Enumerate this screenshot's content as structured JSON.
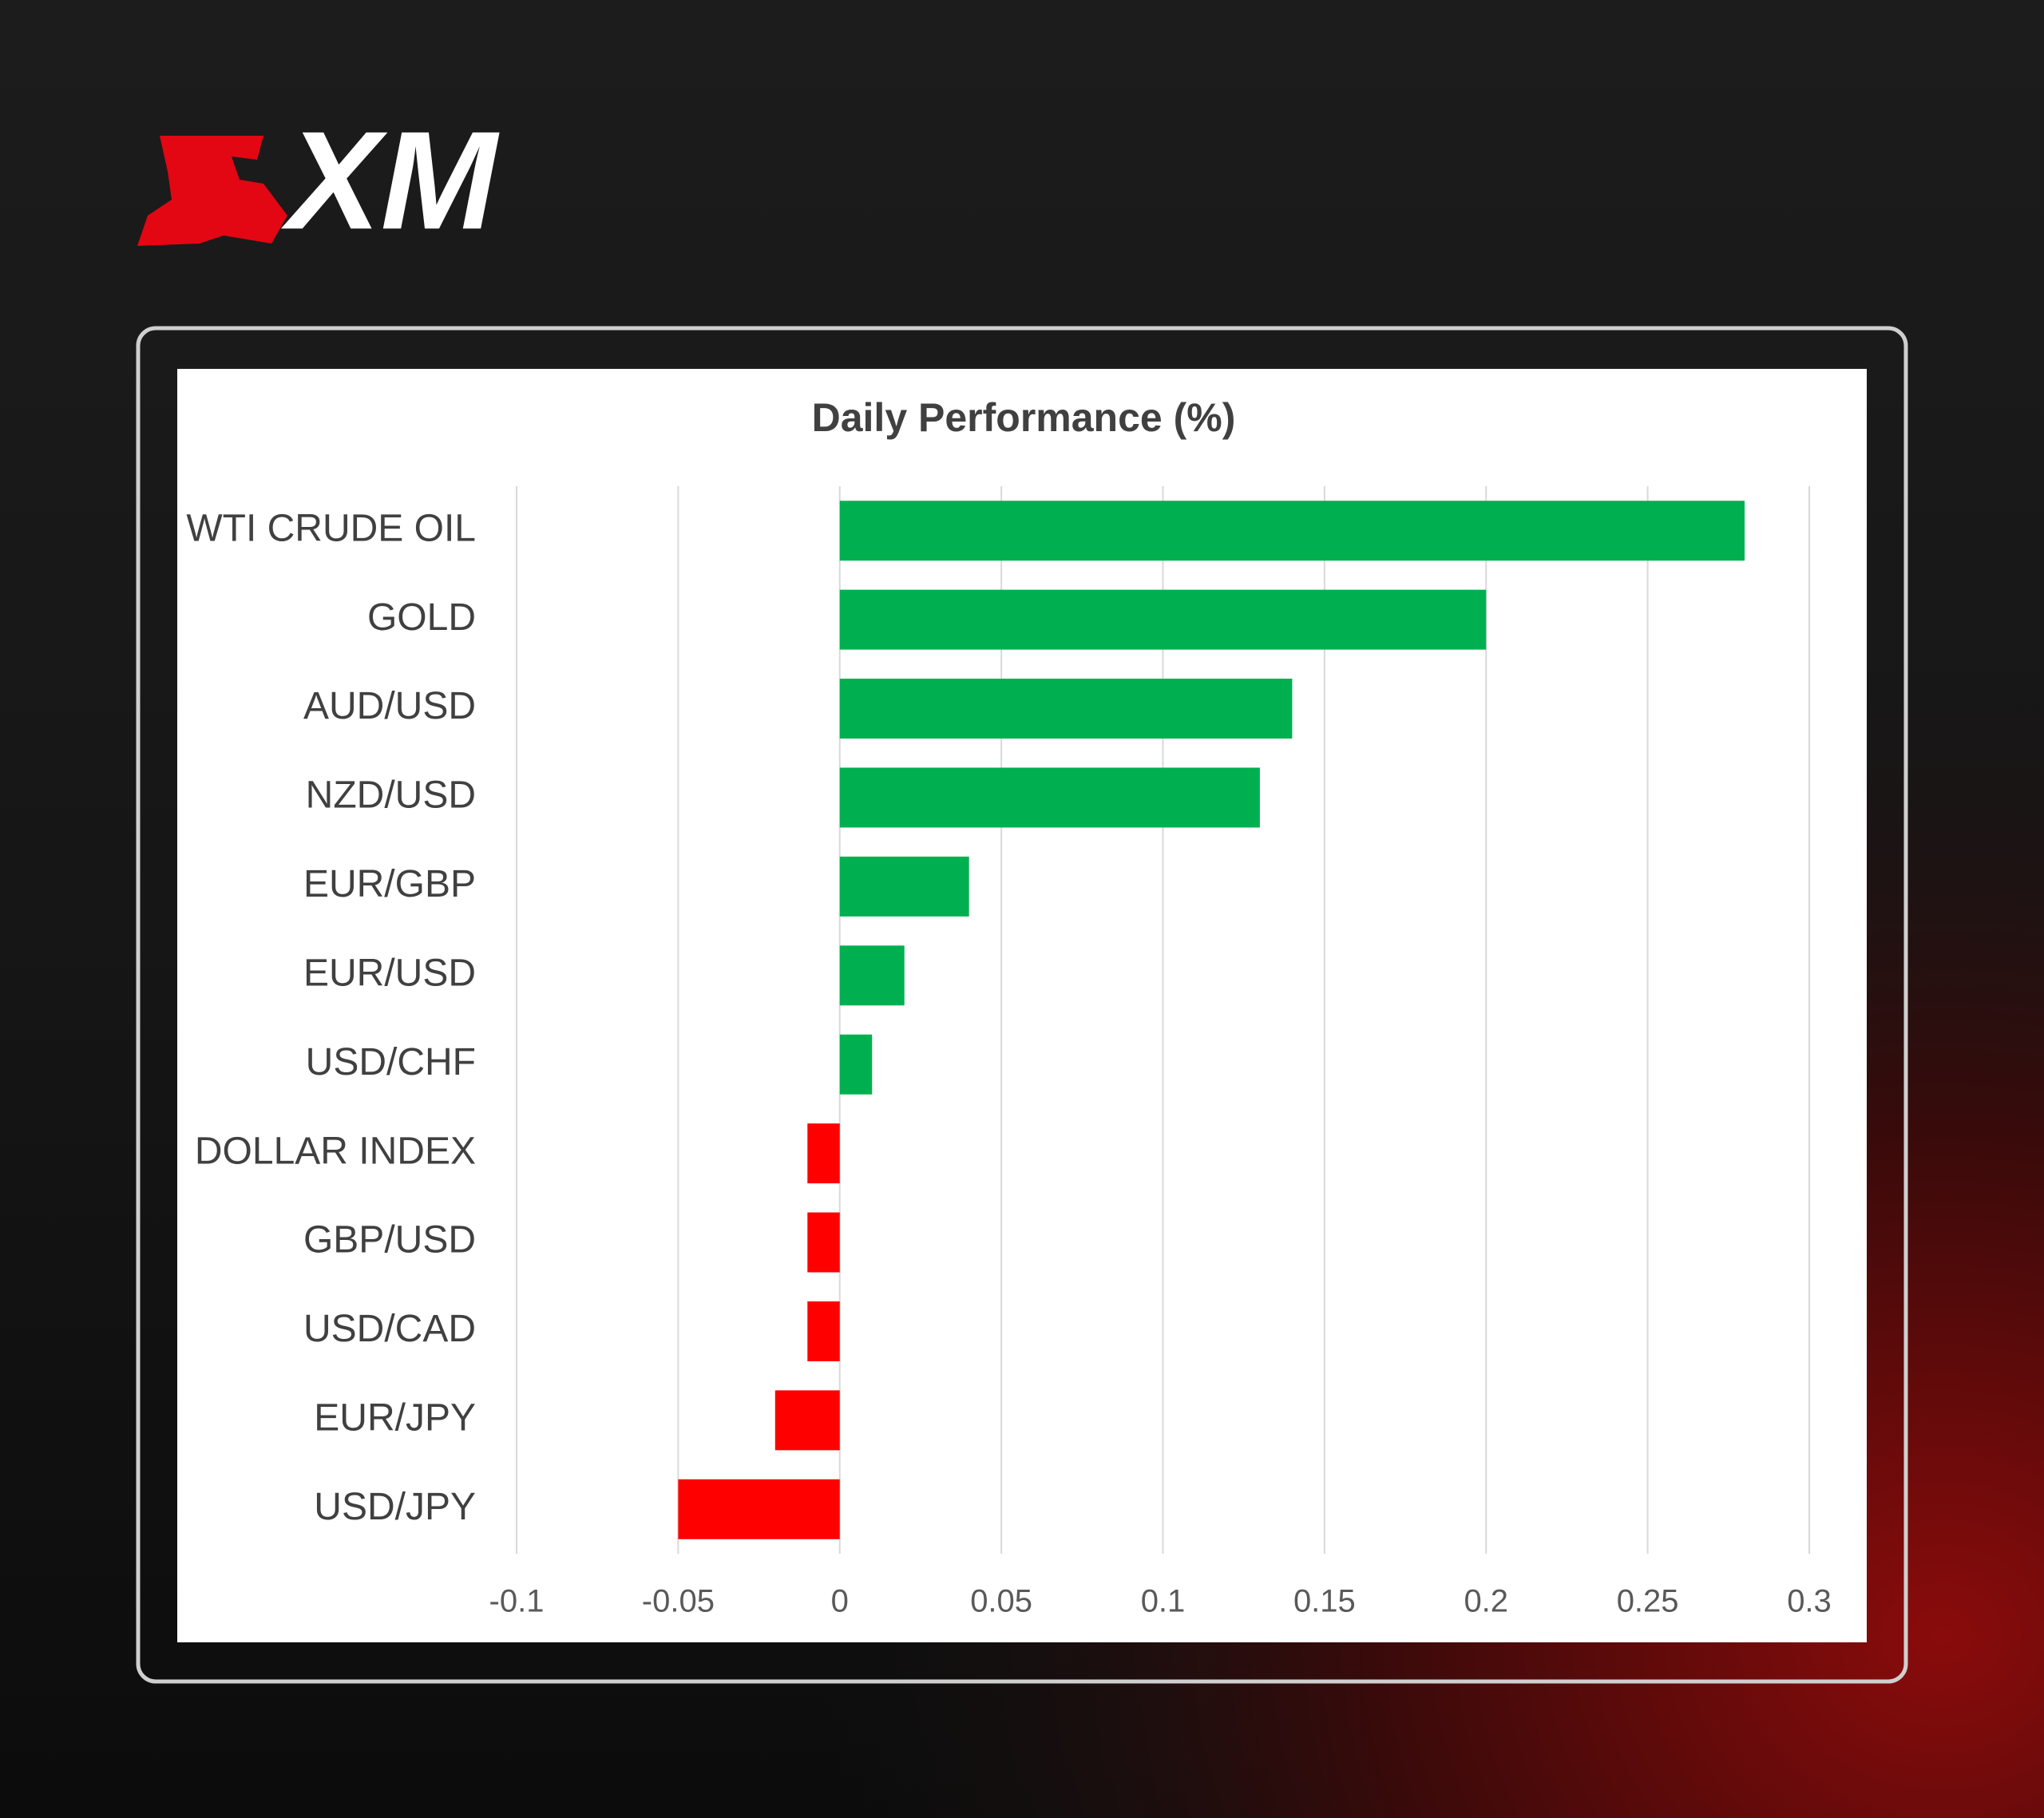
{
  "brand": "XM",
  "chart_data": {
    "type": "barh",
    "title": "Daily Performance (%)",
    "categories": [
      "WTI CRUDE OIL",
      "GOLD",
      "AUD/USD",
      "NZD/USD",
      "EUR/GBP",
      "EUR/USD",
      "USD/CHF",
      "DOLLAR INDEX",
      "GBP/USD",
      "USD/CAD",
      "EUR/JPY",
      "USD/JPY"
    ],
    "values": [
      0.28,
      0.2,
      0.14,
      0.13,
      0.04,
      0.02,
      0.01,
      -0.01,
      -0.01,
      -0.01,
      -0.02,
      -0.05
    ],
    "colors": [
      "#00b050",
      "#00b050",
      "#00b050",
      "#00b050",
      "#00b050",
      "#00b050",
      "#00b050",
      "#ff0000",
      "#ff0000",
      "#ff0000",
      "#ff0000",
      "#ff0000"
    ],
    "xlim": [
      -0.1,
      0.3
    ],
    "xticks": [
      -0.1,
      -0.05,
      0,
      0.05,
      0.1,
      0.15,
      0.2,
      0.25,
      0.3
    ],
    "grid": true
  }
}
